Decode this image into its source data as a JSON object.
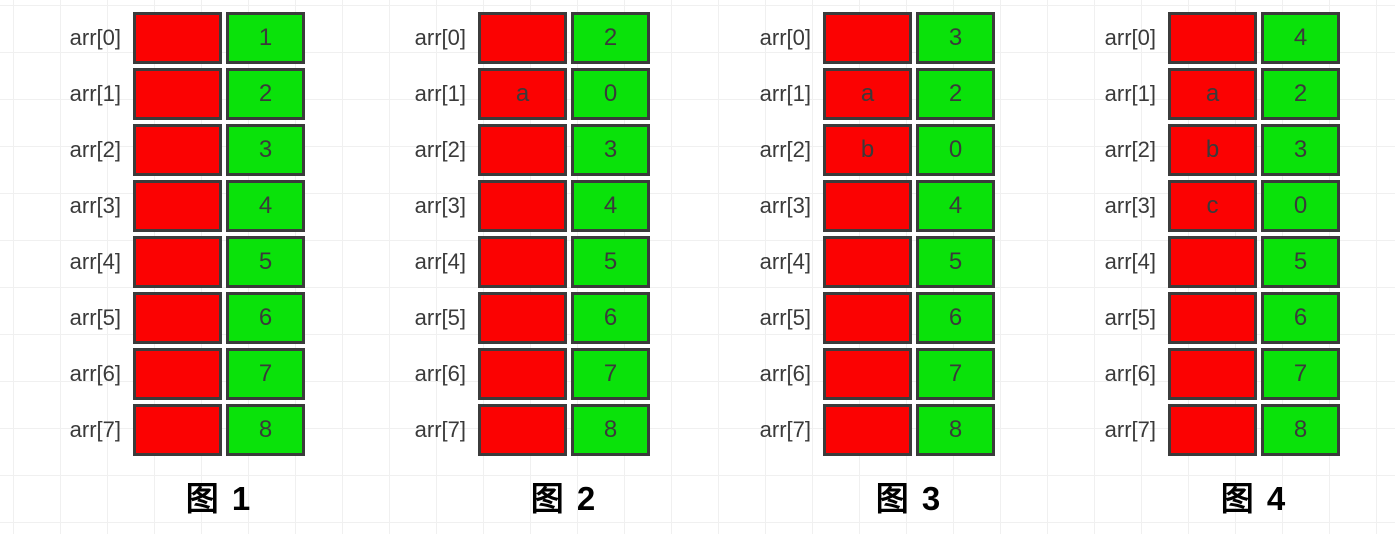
{
  "colors": {
    "red": "#fb0202",
    "green": "#0ae20a",
    "border": "#3b3b3b",
    "ink": "#3a3a3a"
  },
  "diagrams": [
    {
      "caption": "图 1",
      "rows": [
        {
          "label": "arr[0]",
          "red": "",
          "green": "1"
        },
        {
          "label": "arr[1]",
          "red": "",
          "green": "2"
        },
        {
          "label": "arr[2]",
          "red": "",
          "green": "3"
        },
        {
          "label": "arr[3]",
          "red": "",
          "green": "4"
        },
        {
          "label": "arr[4]",
          "red": "",
          "green": "5"
        },
        {
          "label": "arr[5]",
          "red": "",
          "green": "6"
        },
        {
          "label": "arr[6]",
          "red": "",
          "green": "7"
        },
        {
          "label": "arr[7]",
          "red": "",
          "green": "8"
        }
      ]
    },
    {
      "caption": "图 2",
      "rows": [
        {
          "label": "arr[0]",
          "red": "",
          "green": "2"
        },
        {
          "label": "arr[1]",
          "red": "a",
          "green": "0"
        },
        {
          "label": "arr[2]",
          "red": "",
          "green": "3"
        },
        {
          "label": "arr[3]",
          "red": "",
          "green": "4"
        },
        {
          "label": "arr[4]",
          "red": "",
          "green": "5"
        },
        {
          "label": "arr[5]",
          "red": "",
          "green": "6"
        },
        {
          "label": "arr[6]",
          "red": "",
          "green": "7"
        },
        {
          "label": "arr[7]",
          "red": "",
          "green": "8"
        }
      ]
    },
    {
      "caption": "图 3",
      "rows": [
        {
          "label": "arr[0]",
          "red": "",
          "green": "3"
        },
        {
          "label": "arr[1]",
          "red": "a",
          "green": "2"
        },
        {
          "label": "arr[2]",
          "red": "b",
          "green": "0"
        },
        {
          "label": "arr[3]",
          "red": "",
          "green": "4"
        },
        {
          "label": "arr[4]",
          "red": "",
          "green": "5"
        },
        {
          "label": "arr[5]",
          "red": "",
          "green": "6"
        },
        {
          "label": "arr[6]",
          "red": "",
          "green": "7"
        },
        {
          "label": "arr[7]",
          "red": "",
          "green": "8"
        }
      ]
    },
    {
      "caption": "图 4",
      "rows": [
        {
          "label": "arr[0]",
          "red": "",
          "green": "4"
        },
        {
          "label": "arr[1]",
          "red": "a",
          "green": "2"
        },
        {
          "label": "arr[2]",
          "red": "b",
          "green": "3"
        },
        {
          "label": "arr[3]",
          "red": "c",
          "green": "0"
        },
        {
          "label": "arr[4]",
          "red": "",
          "green": "5"
        },
        {
          "label": "arr[5]",
          "red": "",
          "green": "6"
        },
        {
          "label": "arr[6]",
          "red": "",
          "green": "7"
        },
        {
          "label": "arr[7]",
          "red": "",
          "green": "8"
        }
      ]
    }
  ]
}
